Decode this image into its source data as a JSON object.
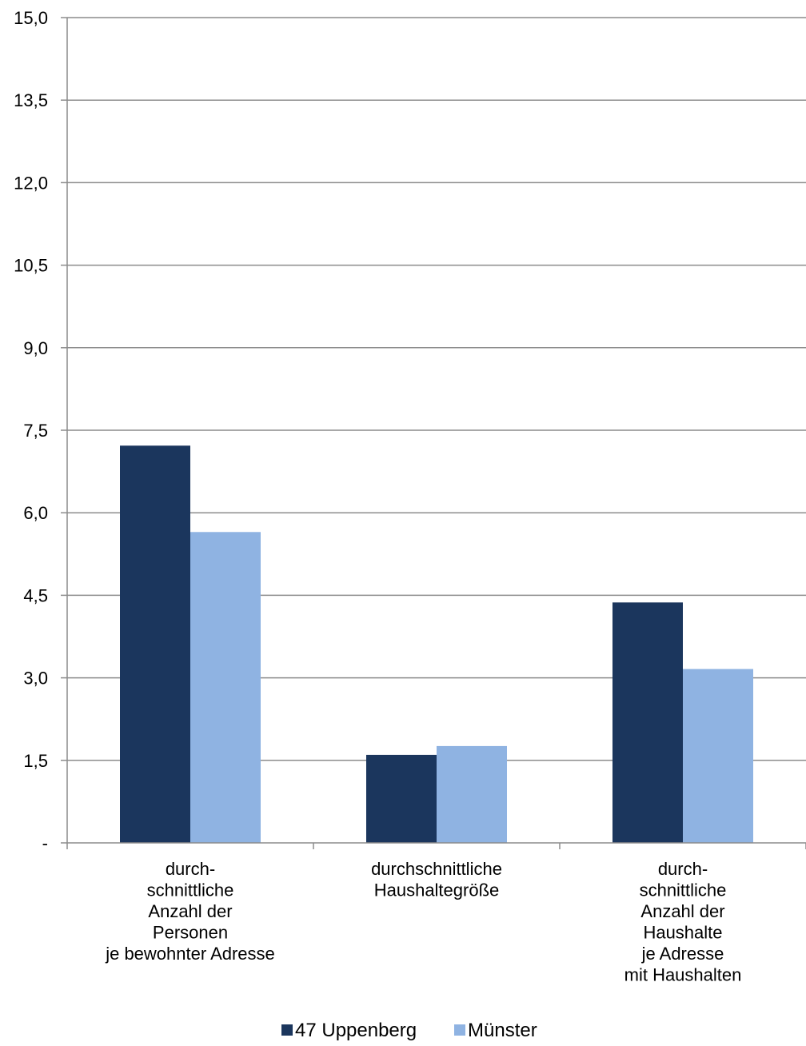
{
  "chart_data": {
    "type": "bar",
    "categories": [
      [
        "durch-",
        "schnittliche",
        "Anzahl der",
        "Personen",
        "je bewohnter Adresse"
      ],
      [
        "durchschnittliche",
        "Haushaltegröße"
      ],
      [
        "durch-",
        "schnittliche",
        "Anzahl der",
        "Haushalte",
        "je Adresse",
        "mit Haushalten"
      ]
    ],
    "series": [
      {
        "name": "47 Uppenberg",
        "values": [
          7.22,
          1.6,
          4.37
        ],
        "color": "#1b365d"
      },
      {
        "name": "Münster",
        "values": [
          5.65,
          1.76,
          3.16
        ],
        "color": "#8fb3e2"
      }
    ],
    "yticks": [
      {
        "value": 0,
        "label": "-"
      },
      {
        "value": 1.5,
        "label": "1,5"
      },
      {
        "value": 3.0,
        "label": "3,0"
      },
      {
        "value": 4.5,
        "label": "4,5"
      },
      {
        "value": 6.0,
        "label": "6,0"
      },
      {
        "value": 7.5,
        "label": "7,5"
      },
      {
        "value": 9.0,
        "label": "9,0"
      },
      {
        "value": 10.5,
        "label": "10,5"
      },
      {
        "value": 12.0,
        "label": "12,0"
      },
      {
        "value": 13.5,
        "label": "13,5"
      },
      {
        "value": 15.0,
        "label": "15,0"
      }
    ],
    "ylim": [
      0,
      15
    ],
    "grid": true,
    "legend_position": "bottom-center",
    "gridline_color": "#8c8c8c",
    "axis_color": "#8c8c8c"
  }
}
